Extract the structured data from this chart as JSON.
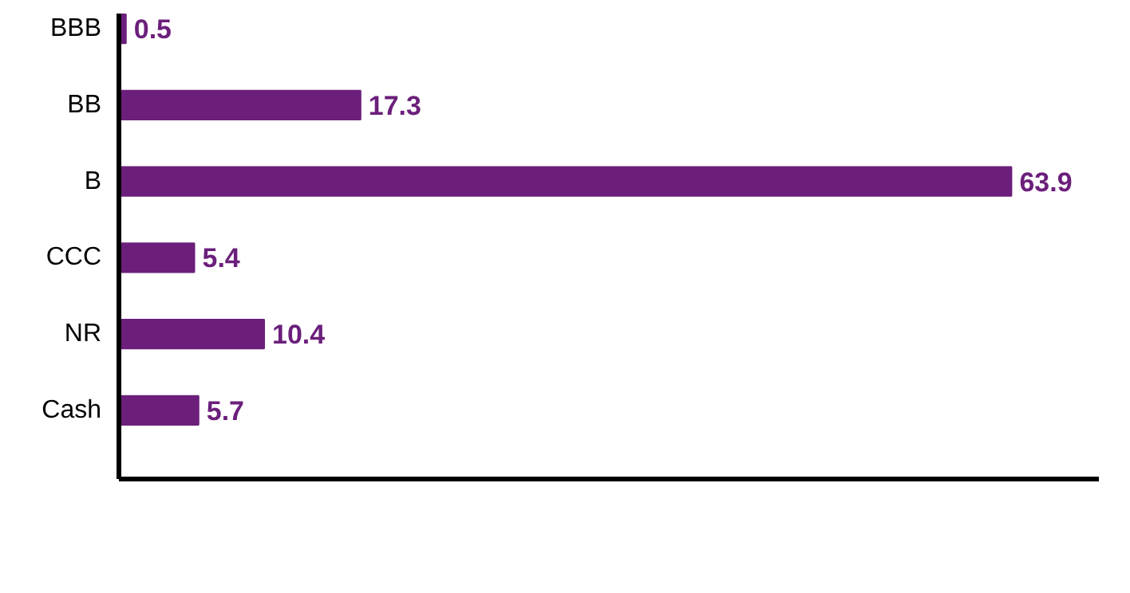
{
  "chart_data": {
    "type": "bar",
    "orientation": "horizontal",
    "categories": [
      "BBB",
      "BB",
      "B",
      "CCC",
      "NR",
      "Cash"
    ],
    "values": [
      0.5,
      17.3,
      63.9,
      5.4,
      10.4,
      5.7
    ],
    "color": "#6b1f7b",
    "data_labels": true,
    "grid": false
  }
}
